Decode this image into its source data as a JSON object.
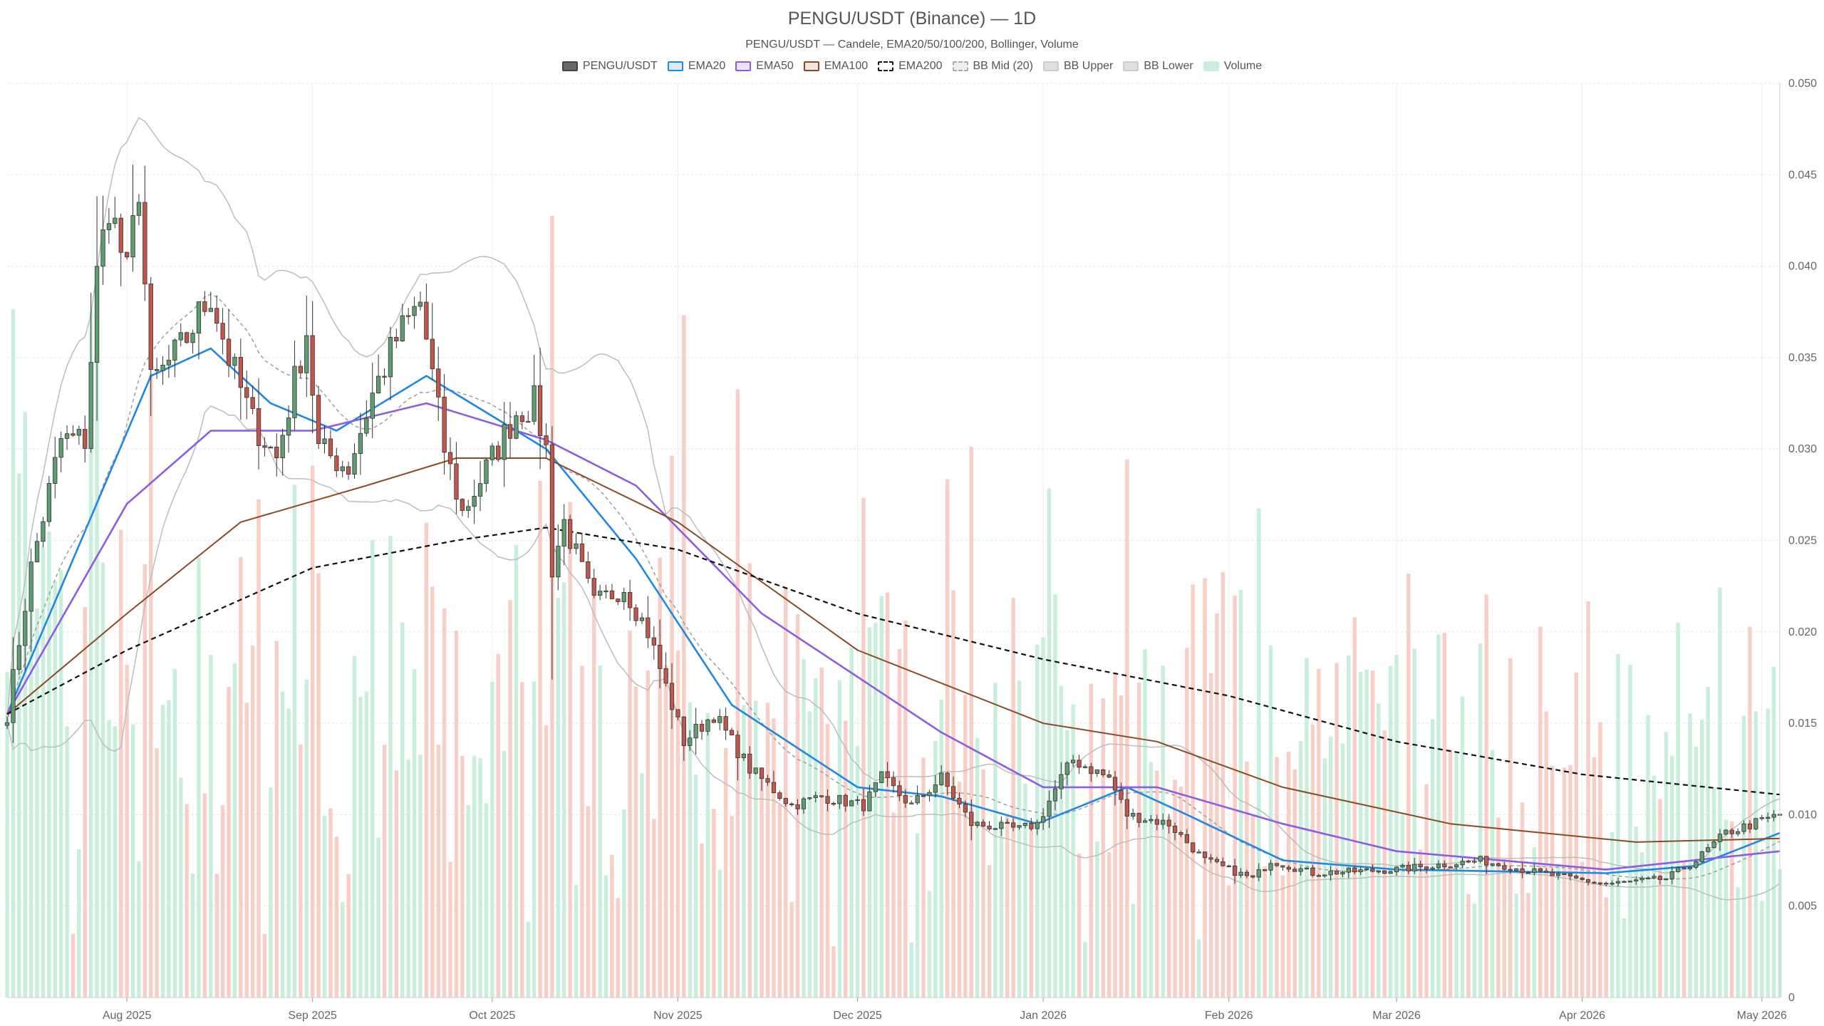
{
  "chart_data": {
    "type": "candlestick",
    "title": "PENGU/USDT (Binance) — 1D",
    "subtitle": "PENGU/USDT — Candele, EMA20/50/100/200, Bollinger, Volume",
    "legend": [
      {
        "name": "PENGU/USDT",
        "fill": "#666666",
        "stroke": "#444444",
        "dashed": false
      },
      {
        "name": "EMA20",
        "fill": "#dbeafe",
        "stroke": "#1e88e5",
        "dashed": false
      },
      {
        "name": "EMA50",
        "fill": "#ede4fb",
        "stroke": "#8e5be6",
        "dashed": false
      },
      {
        "name": "EMA100",
        "fill": "#f3e6dc",
        "stroke": "#8a4b24",
        "dashed": false
      },
      {
        "name": "EMA200",
        "fill": "#ffffff",
        "stroke": "#111111",
        "dashed": true
      },
      {
        "name": "BB Mid (20)",
        "fill": "#eeeeee",
        "stroke": "#aaaaaa",
        "dashed": true
      },
      {
        "name": "BB Upper",
        "fill": "#e0e0e0",
        "stroke": "#cccccc",
        "dashed": false
      },
      {
        "name": "BB Lower",
        "fill": "#e0e0e0",
        "stroke": "#cccccc",
        "dashed": false
      },
      {
        "name": "Volume",
        "fill": "#c9eedb",
        "stroke": "#c9eedb",
        "dashed": false
      }
    ],
    "x_axis": {
      "start_date": "2025-07-12",
      "end_date": "2026-05-04",
      "tick_labels": [
        {
          "date": "2025-08-01",
          "label": "Aug 2025"
        },
        {
          "date": "2025-09-01",
          "label": "Sep 2025"
        },
        {
          "date": "2025-10-01",
          "label": "Oct 2025"
        },
        {
          "date": "2025-11-01",
          "label": "Nov 2025"
        },
        {
          "date": "2025-12-01",
          "label": "Dec 2025"
        },
        {
          "date": "2026-01-01",
          "label": "Jan 2026"
        },
        {
          "date": "2026-02-01",
          "label": "Feb 2026"
        },
        {
          "date": "2026-03-01",
          "label": "Mar 2026"
        },
        {
          "date": "2026-04-01",
          "label": "Apr 2026"
        },
        {
          "date": "2026-05-01",
          "label": "May 2026"
        }
      ]
    },
    "y_axis": {
      "position": "right",
      "ylim": [
        0,
        0.05
      ],
      "tick_values": [
        0,
        0.005,
        0.01,
        0.015,
        0.02,
        0.025,
        0.03,
        0.035,
        0.04,
        0.045,
        0.05
      ],
      "tick_labels": [
        "0",
        "0.005",
        "0.010",
        "0.015",
        "0.020",
        "0.025",
        "0.030",
        "0.035",
        "0.040",
        "0.045",
        "0.050"
      ]
    },
    "grid": true,
    "price_anchors": [
      {
        "date": "2025-07-12",
        "close": 0.0155
      },
      {
        "date": "2025-07-16",
        "close": 0.0235
      },
      {
        "date": "2025-07-21",
        "close": 0.0305
      },
      {
        "date": "2025-07-25",
        "close": 0.0305
      },
      {
        "date": "2025-07-27",
        "close": 0.0395
      },
      {
        "date": "2025-07-29",
        "close": 0.0435
      },
      {
        "date": "2025-08-01",
        "close": 0.0395
      },
      {
        "date": "2025-08-03",
        "close": 0.0445
      },
      {
        "date": "2025-08-05",
        "close": 0.0335
      },
      {
        "date": "2025-08-10",
        "close": 0.0355
      },
      {
        "date": "2025-08-15",
        "close": 0.0385
      },
      {
        "date": "2025-08-18",
        "close": 0.035
      },
      {
        "date": "2025-08-22",
        "close": 0.0315
      },
      {
        "date": "2025-08-26",
        "close": 0.0295
      },
      {
        "date": "2025-08-31",
        "close": 0.0365
      },
      {
        "date": "2025-09-02",
        "close": 0.03
      },
      {
        "date": "2025-09-07",
        "close": 0.029
      },
      {
        "date": "2025-09-11",
        "close": 0.033
      },
      {
        "date": "2025-09-15",
        "close": 0.036
      },
      {
        "date": "2025-09-19",
        "close": 0.038
      },
      {
        "date": "2025-09-23",
        "close": 0.03
      },
      {
        "date": "2025-09-26",
        "close": 0.0265
      },
      {
        "date": "2025-10-01",
        "close": 0.0295
      },
      {
        "date": "2025-10-05",
        "close": 0.032
      },
      {
        "date": "2025-10-08",
        "close": 0.0325
      },
      {
        "date": "2025-10-10",
        "close": 0.03
      },
      {
        "date": "2025-10-11",
        "close": 0.0235
      },
      {
        "date": "2025-10-13",
        "close": 0.026
      },
      {
        "date": "2025-10-18",
        "close": 0.0215
      },
      {
        "date": "2025-10-23",
        "close": 0.0225
      },
      {
        "date": "2025-10-27",
        "close": 0.02
      },
      {
        "date": "2025-11-02",
        "close": 0.014
      },
      {
        "date": "2025-11-07",
        "close": 0.0155
      },
      {
        "date": "2025-11-13",
        "close": 0.0125
      },
      {
        "date": "2025-11-20",
        "close": 0.0105
      },
      {
        "date": "2025-11-25",
        "close": 0.011
      },
      {
        "date": "2025-12-02",
        "close": 0.0105
      },
      {
        "date": "2025-12-05",
        "close": 0.012
      },
      {
        "date": "2025-12-10",
        "close": 0.0105
      },
      {
        "date": "2025-12-15",
        "close": 0.012
      },
      {
        "date": "2025-12-20",
        "close": 0.0095
      },
      {
        "date": "2025-12-28",
        "close": 0.0092
      },
      {
        "date": "2025-12-31",
        "close": 0.0095
      },
      {
        "date": "2026-01-04",
        "close": 0.012
      },
      {
        "date": "2026-01-06",
        "close": 0.013
      },
      {
        "date": "2026-01-12",
        "close": 0.012
      },
      {
        "date": "2026-01-15",
        "close": 0.01
      },
      {
        "date": "2026-01-22",
        "close": 0.0095
      },
      {
        "date": "2026-01-28",
        "close": 0.0075
      },
      {
        "date": "2026-02-05",
        "close": 0.0065
      },
      {
        "date": "2026-02-08",
        "close": 0.0075
      },
      {
        "date": "2026-02-15",
        "close": 0.0068
      },
      {
        "date": "2026-03-01",
        "close": 0.007
      },
      {
        "date": "2026-03-15",
        "close": 0.0075
      },
      {
        "date": "2026-03-25",
        "close": 0.0068
      },
      {
        "date": "2026-04-05",
        "close": 0.0062
      },
      {
        "date": "2026-04-15",
        "close": 0.0065
      },
      {
        "date": "2026-04-20",
        "close": 0.0075
      },
      {
        "date": "2026-04-25",
        "close": 0.009
      },
      {
        "date": "2026-05-04",
        "close": 0.01
      }
    ],
    "ema_series": [
      {
        "name": "EMA20",
        "points": [
          [
            "2025-07-12",
            0.0155
          ],
          [
            "2025-07-25",
            0.0255
          ],
          [
            "2025-08-05",
            0.034
          ],
          [
            "2025-08-15",
            0.0355
          ],
          [
            "2025-08-25",
            0.0325
          ],
          [
            "2025-09-05",
            0.031
          ],
          [
            "2025-09-20",
            0.034
          ],
          [
            "2025-10-05",
            0.031
          ],
          [
            "2025-10-10",
            0.03
          ],
          [
            "2025-10-25",
            0.024
          ],
          [
            "2025-11-10",
            0.016
          ],
          [
            "2025-12-01",
            0.0115
          ],
          [
            "2025-12-15",
            0.011
          ],
          [
            "2025-12-31",
            0.0095
          ],
          [
            "2026-01-15",
            0.0115
          ],
          [
            "2026-01-25",
            0.01
          ],
          [
            "2026-02-10",
            0.0075
          ],
          [
            "2026-03-01",
            0.007
          ],
          [
            "2026-04-05",
            0.0068
          ],
          [
            "2026-04-20",
            0.0072
          ],
          [
            "2026-05-04",
            0.009
          ]
        ]
      },
      {
        "name": "EMA50",
        "points": [
          [
            "2025-07-12",
            0.0155
          ],
          [
            "2025-08-01",
            0.027
          ],
          [
            "2025-08-15",
            0.031
          ],
          [
            "2025-09-01",
            0.031
          ],
          [
            "2025-09-20",
            0.0325
          ],
          [
            "2025-10-10",
            0.0305
          ],
          [
            "2025-10-25",
            0.028
          ],
          [
            "2025-11-15",
            0.021
          ],
          [
            "2025-12-15",
            0.0145
          ],
          [
            "2026-01-01",
            0.0115
          ],
          [
            "2026-01-20",
            0.0115
          ],
          [
            "2026-02-10",
            0.0095
          ],
          [
            "2026-03-01",
            0.008
          ],
          [
            "2026-04-05",
            0.007
          ],
          [
            "2026-05-04",
            0.008
          ]
        ]
      },
      {
        "name": "EMA100",
        "points": [
          [
            "2025-07-12",
            0.0155
          ],
          [
            "2025-08-01",
            0.021
          ],
          [
            "2025-08-20",
            0.026
          ],
          [
            "2025-09-10",
            0.028
          ],
          [
            "2025-09-25",
            0.0295
          ],
          [
            "2025-10-10",
            0.0295
          ],
          [
            "2025-11-01",
            0.026
          ],
          [
            "2025-12-01",
            0.019
          ],
          [
            "2026-01-01",
            0.015
          ],
          [
            "2026-01-20",
            0.014
          ],
          [
            "2026-02-10",
            0.0115
          ],
          [
            "2026-03-10",
            0.0095
          ],
          [
            "2026-04-10",
            0.0085
          ],
          [
            "2026-05-04",
            0.0087
          ]
        ]
      },
      {
        "name": "EMA200",
        "points": [
          [
            "2025-07-12",
            0.0155
          ],
          [
            "2025-08-01",
            0.019
          ],
          [
            "2025-09-01",
            0.0235
          ],
          [
            "2025-09-25",
            0.025
          ],
          [
            "2025-10-10",
            0.0257
          ],
          [
            "2025-11-01",
            0.0245
          ],
          [
            "2025-12-01",
            0.021
          ],
          [
            "2026-01-01",
            0.0185
          ],
          [
            "2026-02-01",
            0.0165
          ],
          [
            "2026-03-01",
            0.014
          ],
          [
            "2026-04-01",
            0.0122
          ],
          [
            "2026-05-04",
            0.0111
          ]
        ]
      }
    ]
  }
}
